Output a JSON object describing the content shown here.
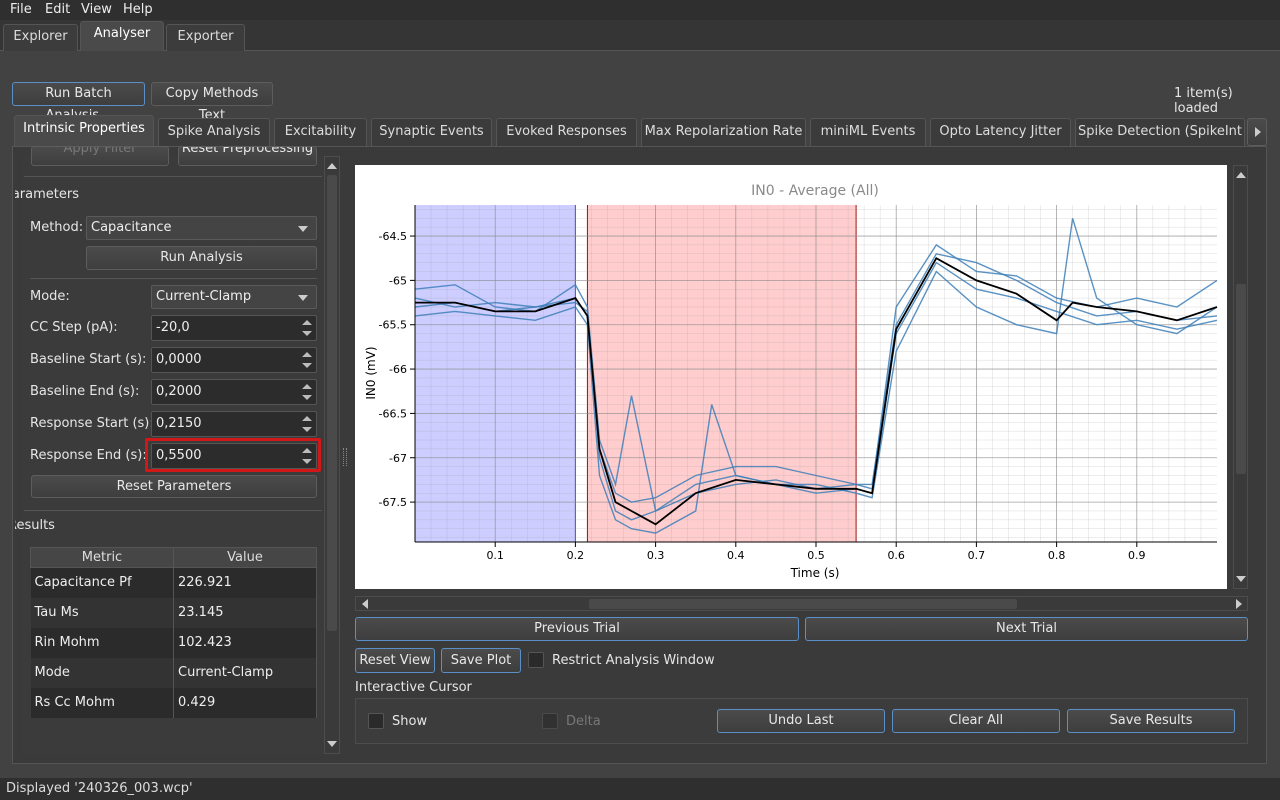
{
  "menu": [
    "File",
    "Edit",
    "View",
    "Help"
  ],
  "main_tabs": [
    "Explorer",
    "Analyser",
    "Exporter"
  ],
  "toolbar": {
    "batch": "Run Batch Analysis...",
    "copy": "Copy Methods Text",
    "loaded": "1 item(s) loaded"
  },
  "analysis_tabs": [
    "Intrinsic Properties",
    "Spike Analysis",
    "Excitability",
    "Synaptic Events",
    "Evoked Responses",
    "Max Repolarization Rate",
    "miniML Events",
    "Opto Latency Jitter",
    "Spike Detection (SpikeInt"
  ],
  "preprocess": {
    "apply": "Apply Filter",
    "reset": "Reset Preprocessing"
  },
  "params": {
    "section": "Parameters",
    "method_label": "Method:",
    "method_value": "Capacitance",
    "run": "Run Analysis",
    "mode_label": "Mode:",
    "mode_value": "Current-Clamp",
    "cc_label": "CC Step (pA):",
    "cc_value": "-20,0",
    "bs_label": "Baseline Start (s):",
    "bs_value": "0,0000",
    "be_label": "Baseline End (s):",
    "be_value": "0,2000",
    "rs_label": "Response Start (s):",
    "rs_value": "0,2150",
    "re_label": "Response End (s):",
    "re_value": "0,5500",
    "reset": "Reset Parameters"
  },
  "results": {
    "section": "Results",
    "headers": [
      "Metric",
      "Value"
    ],
    "rows": [
      [
        "Capacitance Pf",
        "226.921"
      ],
      [
        "Tau Ms",
        "23.145"
      ],
      [
        "Rin Mohm",
        "102.423"
      ],
      [
        "Mode",
        "Current-Clamp"
      ],
      [
        "Rs Cc Mohm",
        "0.429"
      ]
    ]
  },
  "chart_data": {
    "type": "line",
    "title": "IN0 - Average (All)",
    "xlabel": "Time (s)",
    "ylabel": "IN0 (mV)",
    "xlim": [
      0,
      1.0
    ],
    "ylim": [
      -67.95,
      -64.15
    ],
    "xticks": [
      "0.1",
      "0.2",
      "0.3",
      "0.4",
      "0.5",
      "0.6",
      "0.7",
      "0.8",
      "0.9"
    ],
    "yticks": [
      "-64.5",
      "-65",
      "-65.5",
      "-66",
      "-66.5",
      "-67",
      "-67.5"
    ],
    "baseline_window": [
      0,
      0.2
    ],
    "response_window": [
      0.215,
      0.55
    ],
    "series": [
      {
        "x": [
          0,
          0.05,
          0.1,
          0.15,
          0.2,
          0.215,
          0.23,
          0.25,
          0.27,
          0.3,
          0.35,
          0.4,
          0.45,
          0.5,
          0.55,
          0.57,
          0.6,
          0.65,
          0.7,
          0.75,
          0.8,
          0.85,
          0.9,
          0.95,
          1.0
        ],
        "y": [
          -65.1,
          -65.05,
          -65.3,
          -65.35,
          -65.05,
          -65.3,
          -66.8,
          -67.3,
          -66.3,
          -67.6,
          -67.4,
          -67.3,
          -67.25,
          -67.35,
          -67.3,
          -67.35,
          -65.3,
          -64.6,
          -64.9,
          -64.95,
          -65.2,
          -65.3,
          -65.2,
          -65.3,
          -65.0
        ]
      },
      {
        "x": [
          0,
          0.05,
          0.1,
          0.15,
          0.2,
          0.215,
          0.23,
          0.25,
          0.27,
          0.3,
          0.35,
          0.37,
          0.4,
          0.45,
          0.5,
          0.55,
          0.57,
          0.6,
          0.65,
          0.7,
          0.75,
          0.8,
          0.82,
          0.85,
          0.9,
          0.95,
          1.0
        ],
        "y": [
          -65.4,
          -65.35,
          -65.4,
          -65.45,
          -65.3,
          -65.5,
          -67.2,
          -67.7,
          -67.8,
          -67.85,
          -67.6,
          -66.4,
          -67.2,
          -67.3,
          -67.3,
          -67.4,
          -67.45,
          -65.8,
          -64.9,
          -65.3,
          -65.5,
          -65.6,
          -64.3,
          -65.2,
          -65.5,
          -65.6,
          -65.3
        ]
      },
      {
        "x": [
          0,
          0.05,
          0.1,
          0.15,
          0.2,
          0.215,
          0.23,
          0.25,
          0.27,
          0.3,
          0.35,
          0.4,
          0.45,
          0.5,
          0.55,
          0.57,
          0.6,
          0.65,
          0.7,
          0.75,
          0.8,
          0.85,
          0.9,
          0.95,
          1.0
        ],
        "y": [
          -65.3,
          -65.25,
          -65.35,
          -65.3,
          -65.2,
          -65.4,
          -66.9,
          -67.4,
          -67.5,
          -67.45,
          -67.2,
          -67.1,
          -67.1,
          -67.2,
          -67.3,
          -67.3,
          -65.5,
          -64.7,
          -64.8,
          -65.0,
          -65.25,
          -65.4,
          -65.35,
          -65.45,
          -65.4
        ]
      },
      {
        "x": [
          0,
          0.05,
          0.1,
          0.15,
          0.2,
          0.215,
          0.23,
          0.25,
          0.27,
          0.3,
          0.35,
          0.4,
          0.45,
          0.5,
          0.55,
          0.57,
          0.6,
          0.65,
          0.7,
          0.75,
          0.8,
          0.85,
          0.9,
          0.95,
          1.0
        ],
        "y": [
          -65.2,
          -65.3,
          -65.25,
          -65.3,
          -65.25,
          -65.35,
          -67.0,
          -67.6,
          -67.7,
          -67.6,
          -67.3,
          -67.2,
          -67.3,
          -67.4,
          -67.35,
          -67.4,
          -65.6,
          -64.8,
          -65.1,
          -65.2,
          -65.35,
          -65.5,
          -65.45,
          -65.55,
          -65.45
        ]
      },
      {
        "name": "Average",
        "color": "#000000",
        "x": [
          0,
          0.05,
          0.1,
          0.15,
          0.2,
          0.215,
          0.23,
          0.25,
          0.27,
          0.3,
          0.35,
          0.4,
          0.45,
          0.5,
          0.55,
          0.57,
          0.6,
          0.65,
          0.7,
          0.75,
          0.8,
          0.82,
          0.85,
          0.9,
          0.95,
          1.0
        ],
        "y": [
          -65.25,
          -65.25,
          -65.35,
          -65.35,
          -65.2,
          -65.4,
          -66.9,
          -67.5,
          -67.6,
          -67.75,
          -67.4,
          -67.25,
          -67.3,
          -67.35,
          -67.35,
          -67.4,
          -65.55,
          -64.75,
          -65.0,
          -65.15,
          -65.45,
          -65.25,
          -65.3,
          -65.35,
          -65.45,
          -65.3
        ]
      }
    ],
    "colors": {
      "trial": "#3d7fb8",
      "average": "#000000",
      "baseline": "#c8c8ff",
      "response": "#ffc8c8"
    }
  },
  "nav": {
    "prev": "Previous Trial",
    "next": "Next Trial"
  },
  "plot_tools": {
    "reset": "Reset View",
    "save": "Save Plot",
    "restrict": "Restrict Analysis Window"
  },
  "cursor": {
    "title": "Interactive Cursor",
    "show": "Show",
    "delta": "Delta",
    "undo": "Undo Last",
    "clear": "Clear All",
    "save": "Save Results"
  },
  "status": "Displayed '240326_003.wcp'"
}
